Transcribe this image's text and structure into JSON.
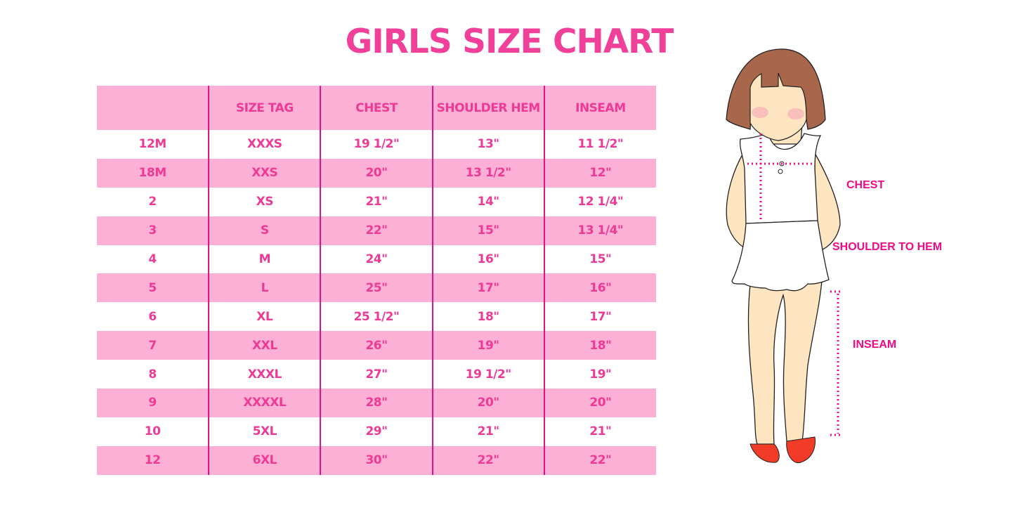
{
  "title": "GIRLS SIZE CHART",
  "table": {
    "headers": [
      "",
      "SIZE TAG",
      "CHEST",
      "SHOULDER HEM",
      "INSEAM"
    ],
    "rows": [
      [
        "12M",
        "XXXS",
        "19 1/2\"",
        "13\"",
        "11 1/2\""
      ],
      [
        "18M",
        "XXS",
        "20\"",
        "13 1/2\"",
        "12\""
      ],
      [
        "2",
        "XS",
        "21\"",
        "14\"",
        "12 1/4\""
      ],
      [
        "3",
        "S",
        "22\"",
        "15\"",
        "13 1/4\""
      ],
      [
        "4",
        "M",
        "24\"",
        "16\"",
        "15\""
      ],
      [
        "5",
        "L",
        "25\"",
        "17\"",
        "16\""
      ],
      [
        "6",
        "XL",
        "25 1/2\"",
        "18\"",
        "17\""
      ],
      [
        "7",
        "XXL",
        "26\"",
        "19\"",
        "18\""
      ],
      [
        "8",
        "XXXL",
        "27\"",
        "19 1/2\"",
        "19\""
      ],
      [
        "9",
        "XXXXL",
        "28\"",
        "20\"",
        "20\""
      ],
      [
        "10",
        "5XL",
        "29\"",
        "21\"",
        "21\""
      ],
      [
        "12",
        "6XL",
        "30\"",
        "22\"",
        "22\""
      ]
    ]
  },
  "figure": {
    "chest_label": "CHEST",
    "shoulder_label": "SHOULDER TO HEM",
    "inseam_label": "INSEAM"
  },
  "colors": {
    "accent": "#f0409a",
    "row_pink": "#fdb0d6",
    "divider": "#e0148a"
  }
}
